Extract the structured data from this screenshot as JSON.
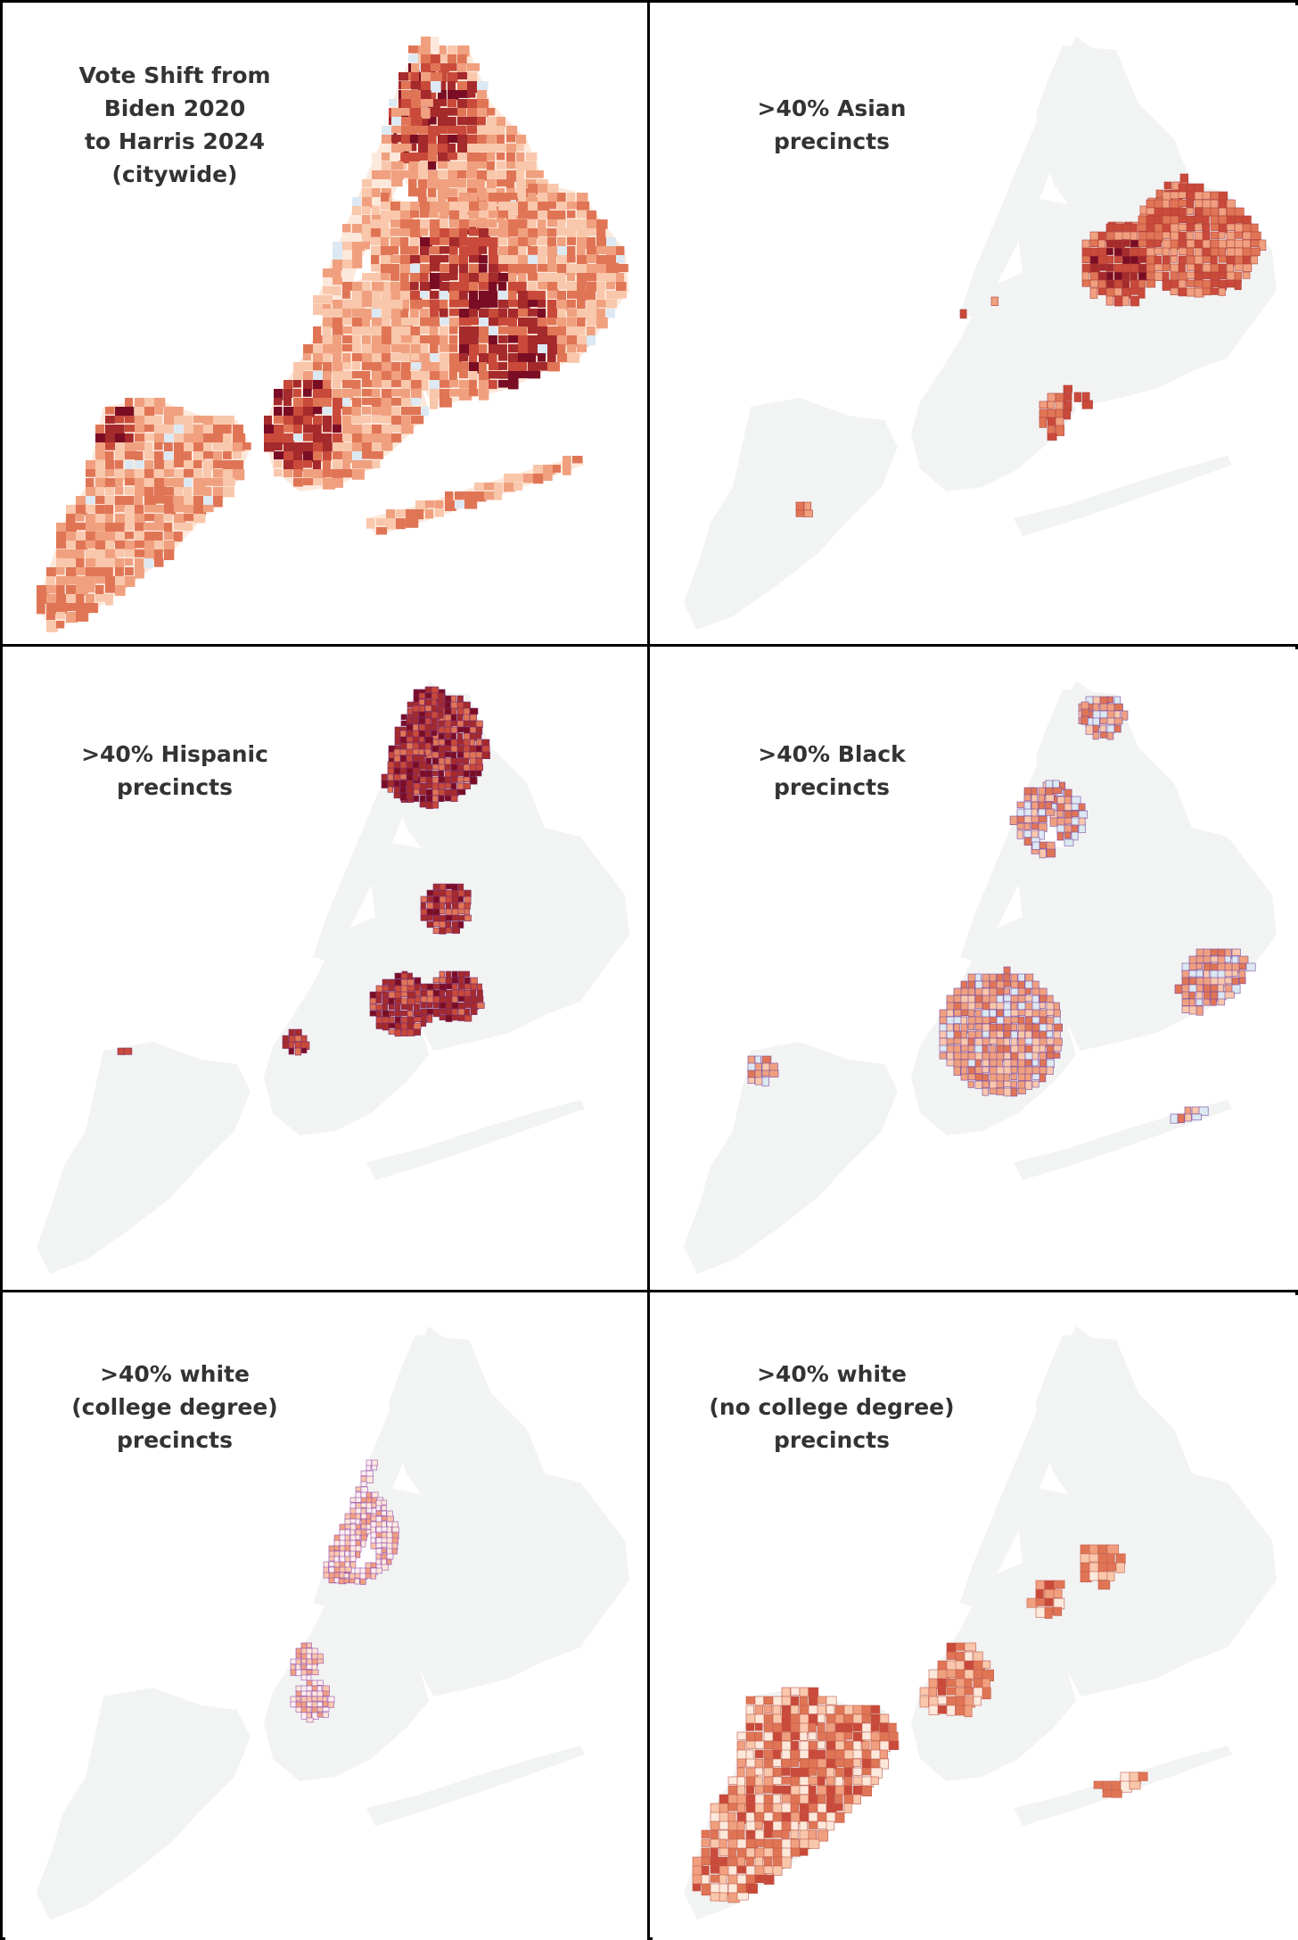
{
  "panels": [
    {
      "id": "citywide",
      "title": "Vote Shift from\nBiden 2020\nto Harris 2024\n(citywide)"
    },
    {
      "id": "asian",
      "title": ">40% Asian\nprecincts"
    },
    {
      "id": "hispanic",
      "title": ">40% Hispanic\nprecincts"
    },
    {
      "id": "black",
      "title": ">40% Black\nprecincts"
    },
    {
      "id": "white-college",
      "title": ">40% white\n(college degree)\nprecincts"
    },
    {
      "id": "white-no-college",
      "title": ">40% white\n(no college degree)\nprecincts"
    }
  ],
  "colors": {
    "base_gray": "#f2f3f3",
    "shift_scale": [
      "#fde9dc",
      "#f9c7ab",
      "#f0a07f",
      "#e07556",
      "#c94a3a",
      "#a52a2c",
      "#7a0d24"
    ],
    "small_positive": "#dce9f3",
    "precinct_outline": "#7a4aa0"
  }
}
